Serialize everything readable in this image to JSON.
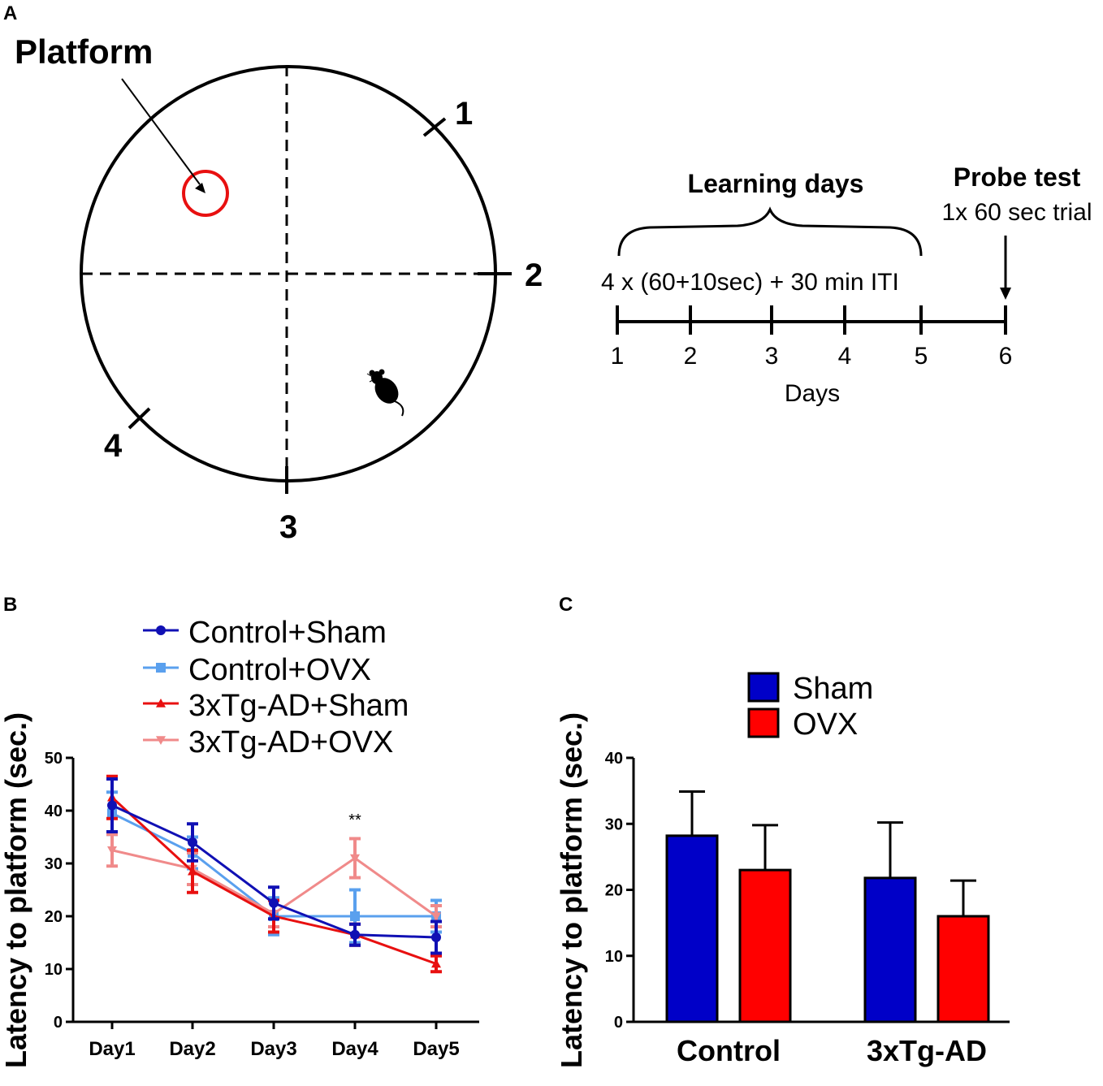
{
  "panels": {
    "a": {
      "label": "A",
      "platform_label": "Platform",
      "quadrants": [
        "1",
        "2",
        "3",
        "4"
      ],
      "timeline": {
        "learning_title": "Learning days",
        "probe_title": "Probe test",
        "probe_detail": "1x 60 sec trial",
        "protocol": "4 x (60+10sec) + 30 min ITI",
        "ticks": [
          "1",
          "2",
          "3",
          "4",
          "5",
          "6"
        ],
        "axis_label": "Days"
      }
    },
    "b": {
      "label": "B",
      "annotation": "**"
    },
    "c": {
      "label": "C"
    }
  },
  "colors": {
    "control_sham": "#1010b4",
    "control_ovx": "#5aa0ee",
    "tg_sham": "#e81010",
    "tg_ovx": "#f08a8a",
    "bar_sham": "#0000c8",
    "bar_ovx": "#ff0000",
    "platform": "#e81010"
  },
  "chart_data": [
    {
      "type": "line",
      "panel": "B",
      "title": "",
      "xlabel": "",
      "ylabel": "Latency to platform (sec.)",
      "ylim": [
        0,
        50
      ],
      "yticks": [
        "0",
        "10",
        "20",
        "30",
        "40",
        "50"
      ],
      "categories": [
        "Day1",
        "Day2",
        "Day3",
        "Day4",
        "Day5"
      ],
      "legend_position": "top",
      "series": [
        {
          "name": "Control+OVX",
          "marker": "square",
          "color_key": "control_ovx",
          "values": [
            39.5,
            32,
            20,
            20,
            20
          ],
          "errors": [
            4,
            3,
            3.5,
            5,
            3
          ]
        },
        {
          "name": "3xTg-AD+OVX",
          "marker": "triangle-down",
          "color_key": "tg_ovx",
          "values": [
            32.5,
            29,
            20.5,
            31,
            20
          ],
          "errors": [
            3,
            3,
            2.5,
            3.7,
            2
          ]
        },
        {
          "name": "3xTg-AD+Sham",
          "marker": "triangle-up",
          "color_key": "tg_sham",
          "values": [
            42.5,
            28.5,
            20,
            16.5,
            11
          ],
          "errors": [
            4,
            4,
            3,
            2,
            1.5
          ]
        },
        {
          "name": "Control+Sham",
          "marker": "circle",
          "color_key": "control_sham",
          "values": [
            41,
            34,
            22.5,
            16.5,
            16
          ],
          "errors": [
            5,
            3.5,
            3,
            2,
            3
          ]
        }
      ],
      "legend_order": [
        "Control+Sham",
        "Control+OVX",
        "3xTg-AD+Sham",
        "3xTg-AD+OVX"
      ]
    },
    {
      "type": "bar",
      "panel": "C",
      "title": "",
      "xlabel": "",
      "ylabel": "Latency to platform (sec.)",
      "ylim": [
        0,
        40
      ],
      "yticks": [
        "0",
        "10",
        "20",
        "30",
        "40"
      ],
      "categories": [
        "Control",
        "3xTg-AD"
      ],
      "legend_position": "top",
      "series": [
        {
          "name": "Sham",
          "color_key": "bar_sham",
          "values": [
            28.2,
            21.8
          ],
          "errors": [
            6.7,
            8.4
          ]
        },
        {
          "name": "OVX",
          "color_key": "bar_ovx",
          "values": [
            23,
            16
          ],
          "errors": [
            6.8,
            5.4
          ]
        }
      ]
    }
  ]
}
